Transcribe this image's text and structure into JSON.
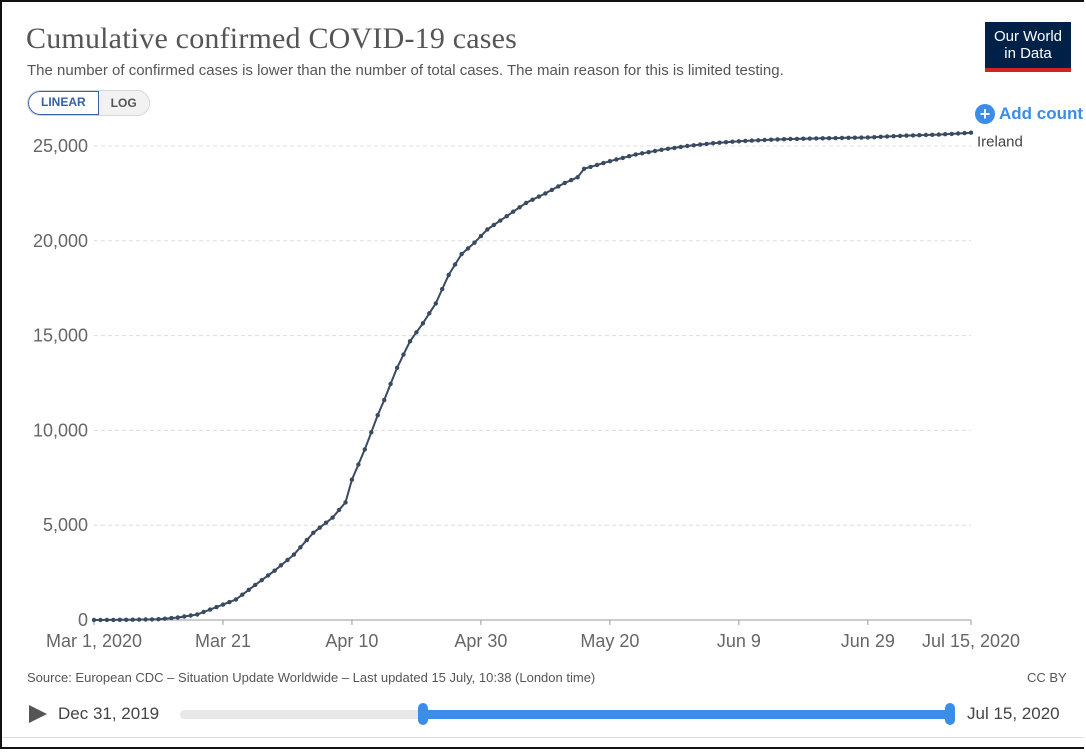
{
  "header": {
    "title": "Cumulative confirmed COVID-19 cases",
    "subtitle": "The number of confirmed cases is lower than the number of total cases. The main reason for this is limited testing.",
    "logo_line1": "Our World",
    "logo_line2": "in Data"
  },
  "controls": {
    "linear_label": "LINEAR",
    "log_label": "LOG",
    "add_country_label": "Add countr",
    "add_icon": "plus-circle-icon"
  },
  "colors": {
    "line": "#3a4a60",
    "accent": "#3b8ee8",
    "grid": "#dddddd",
    "logo_bg": "#002147",
    "logo_bar": "#ce261e"
  },
  "chart_data": {
    "type": "line",
    "title": "Cumulative confirmed COVID-19 cases",
    "ylim": [
      0,
      25000
    ],
    "xlim": [
      "2020-03-01",
      "2020-07-15"
    ],
    "y_ticks": [
      0,
      5000,
      10000,
      15000,
      20000,
      25000
    ],
    "y_tick_labels": [
      "0",
      "5,000",
      "10,000",
      "15,000",
      "20,000",
      "25,000"
    ],
    "x_ticks": [
      "2020-03-01",
      "2020-03-21",
      "2020-04-10",
      "2020-04-30",
      "2020-05-20",
      "2020-06-09",
      "2020-06-29",
      "2020-07-15"
    ],
    "x_tick_labels": [
      "Mar 1, 2020",
      "Mar 21",
      "Apr 10",
      "Apr 30",
      "May 20",
      "Jun 9",
      "Jun 29",
      "Jul 15, 2020"
    ],
    "grid": true,
    "series": [
      {
        "name": "Ireland",
        "points": [
          [
            "2020-03-01",
            0
          ],
          [
            "2020-03-06",
            10
          ],
          [
            "2020-03-11",
            40
          ],
          [
            "2020-03-14",
            130
          ],
          [
            "2020-03-17",
            290
          ],
          [
            "2020-03-20",
            680
          ],
          [
            "2020-03-23",
            1080
          ],
          [
            "2020-03-26",
            1850
          ],
          [
            "2020-03-29",
            2600
          ],
          [
            "2020-04-01",
            3450
          ],
          [
            "2020-04-04",
            4600
          ],
          [
            "2020-04-07",
            5400
          ],
          [
            "2020-04-09",
            6200
          ],
          [
            "2020-04-10",
            7400
          ],
          [
            "2020-04-12",
            9000
          ],
          [
            "2020-04-14",
            10800
          ],
          [
            "2020-04-15",
            11600
          ],
          [
            "2020-04-17",
            13300
          ],
          [
            "2020-04-19",
            14700
          ],
          [
            "2020-04-21",
            15650
          ],
          [
            "2020-04-23",
            16700
          ],
          [
            "2020-04-25",
            18200
          ],
          [
            "2020-04-27",
            19300
          ],
          [
            "2020-04-29",
            19900
          ],
          [
            "2020-05-01",
            20600
          ],
          [
            "2020-05-04",
            21300
          ],
          [
            "2020-05-07",
            22000
          ],
          [
            "2020-05-10",
            22500
          ],
          [
            "2020-05-13",
            23050
          ],
          [
            "2020-05-15",
            23350
          ],
          [
            "2020-05-16",
            23800
          ],
          [
            "2020-05-20",
            24200
          ],
          [
            "2020-05-24",
            24550
          ],
          [
            "2020-05-28",
            24800
          ],
          [
            "2020-06-01",
            25000
          ],
          [
            "2020-06-05",
            25150
          ],
          [
            "2020-06-09",
            25250
          ],
          [
            "2020-06-15",
            25350
          ],
          [
            "2020-06-21",
            25400
          ],
          [
            "2020-06-29",
            25450
          ],
          [
            "2020-07-05",
            25550
          ],
          [
            "2020-07-10",
            25600
          ],
          [
            "2020-07-15",
            25700
          ]
        ]
      }
    ]
  },
  "footer": {
    "source": "Source: European CDC – Situation Update Worldwide – Last updated 15 July, 10:38 (London time)",
    "license": "CC BY"
  },
  "timeline": {
    "start_label": "Dec 31, 2019",
    "end_label": "Jul 15, 2020",
    "range_start_fraction": 0.315,
    "range_end_fraction": 1.0
  }
}
